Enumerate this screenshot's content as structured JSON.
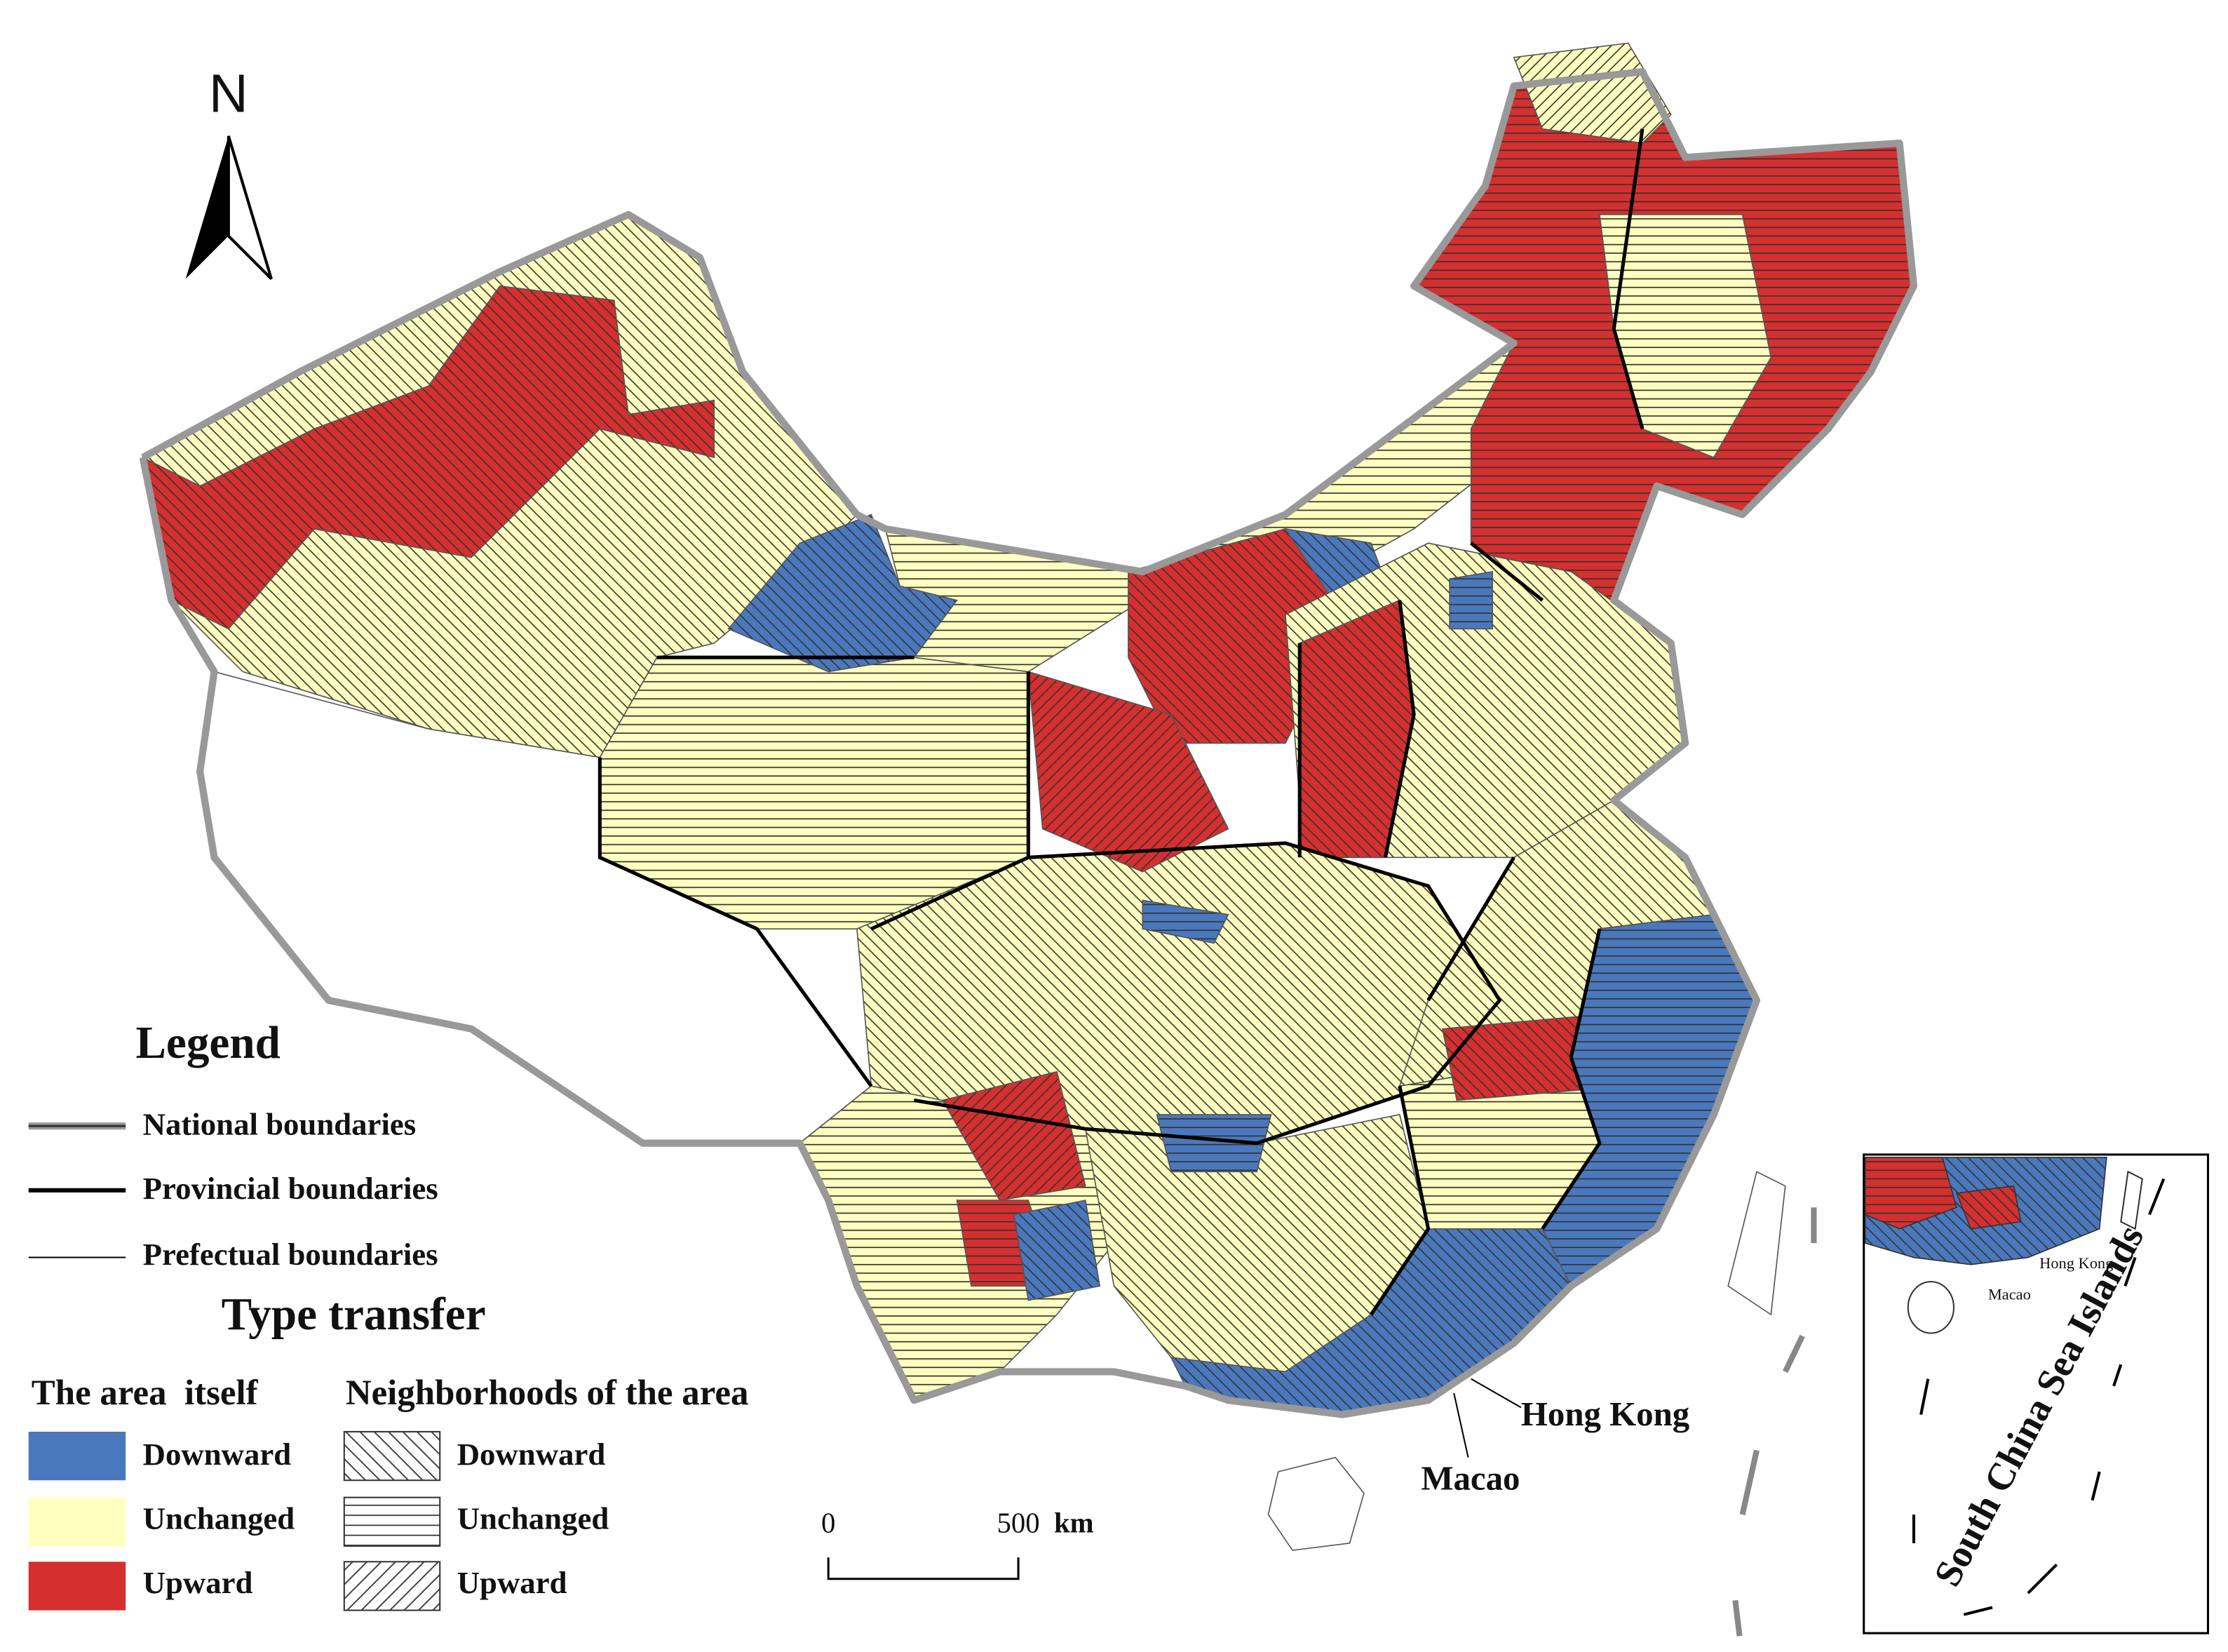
{
  "north_arrow": {
    "label": "N"
  },
  "legend": {
    "title": "Legend",
    "boundaries": [
      "National boundaries",
      "Provincial boundaries",
      "Prefectual boundaries"
    ],
    "type_transfer": {
      "title": "Type transfer",
      "area_header": "The area  itself",
      "neighborhood_header": "Neighborhoods of the area",
      "area_items": [
        "Downward",
        "Unchanged",
        "Upward"
      ],
      "neighborhood_items": [
        "Downward",
        "Unchanged",
        "Upward"
      ]
    }
  },
  "scale_bar": {
    "start": "0",
    "end": "500",
    "unit": "km"
  },
  "labels": {
    "hong_kong": "Hong Kong",
    "macao": "Macao"
  },
  "inset": {
    "title": "South China Sea Islands",
    "hong_kong": "Hong Kong",
    "macao": "Macao"
  }
}
